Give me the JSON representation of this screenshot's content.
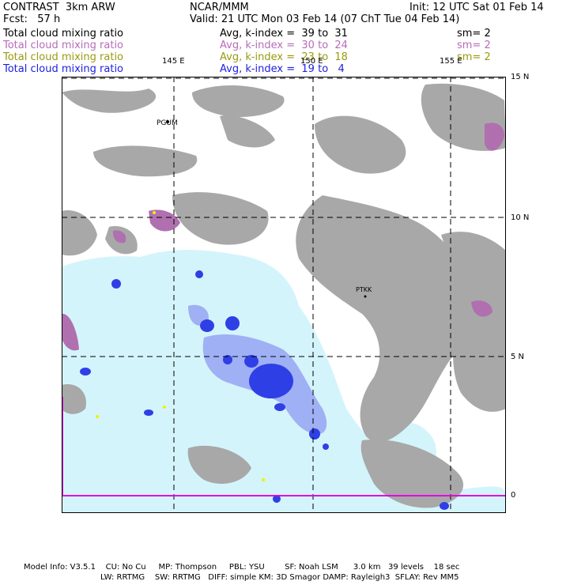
{
  "header": {
    "model": "CONTRAST  3km ARW",
    "org": "NCAR/MMM",
    "init": "Init: 12 UTC Sat 01 Feb 14",
    "fcst": "Fcst:   57 h",
    "valid": "Valid: 21 UTC Mon 03 Feb 14 (07 ChT Tue 04 Feb 14)"
  },
  "legend": [
    {
      "field": "Total cloud mixing ratio",
      "range": "Avg, k-index =  39 to  31",
      "sm": "sm= 2",
      "color": "#000000"
    },
    {
      "field": "Total cloud mixing ratio",
      "range": "Avg, k-index =  30 to  24",
      "sm": "sm= 2",
      "color": "#b86cb8"
    },
    {
      "field": "Total cloud mixing ratio",
      "range": "Avg, k-index =  23 to  18",
      "sm": "sm= 2",
      "color": "#9a9a10"
    },
    {
      "field": "Total cloud mixing ratio",
      "range": "Avg, k-index =  19 to   4",
      "sm": "",
      "color": "#2020e0"
    }
  ],
  "map": {
    "lon_labels": [
      "145 E",
      "150 E",
      "155 E"
    ],
    "lat_labels": [
      "15 N",
      "10 N",
      "5 N",
      "0"
    ],
    "stations": [
      "PGUM",
      "PTKK"
    ],
    "colors": {
      "gray_cloud": "#a8a8a8",
      "magenta_cloud": "#b070b0",
      "light_blue": "#d4f4fb",
      "mid_blue": "#7f8ff0",
      "dark_blue": "#1f2fe0",
      "yellow": "#f0f000",
      "equator_line": "#e000e0"
    }
  },
  "footer": {
    "line1": "Model Info: V3.5.1    CU: No Cu     MP: Thompson     PBL: YSU        SF: Noah LSM      3.0 km   39 levels    18 sec",
    "line2": "LW: RRTMG    SW: RRTMG   DIFF: simple KM: 3D Smagor DAMP: Rayleigh3  SFLAY: Rev MM5"
  }
}
